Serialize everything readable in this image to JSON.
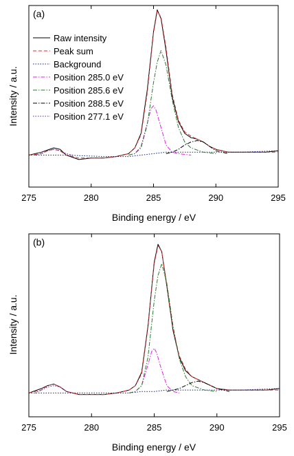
{
  "chart_data": [
    {
      "type": "line",
      "panel_label": "(a)",
      "xlabel": "Binding energy / eV",
      "ylabel": "Intensity / a.u.",
      "xlim": [
        275,
        295
      ],
      "ylim": [
        -0.22,
        1.03
      ],
      "x_ticks": [
        "275",
        "280",
        "285",
        "290",
        "295"
      ],
      "legend_placement": "top-left",
      "legend": [
        "Raw intensity",
        "Peak sum",
        "Background",
        "Position 285.0 eV",
        "Position 285.6 eV",
        "Position 288.5 eV",
        "Position 277.1 eV"
      ],
      "series": [
        {
          "name": "Raw intensity",
          "color": "#000000",
          "dash": "solid",
          "x": [
            275,
            276,
            276.5,
            277,
            277.5,
            278,
            279,
            280,
            281,
            282,
            283,
            283.5,
            284,
            284.5,
            285,
            285.3,
            285.6,
            286,
            286.5,
            287,
            287.5,
            288,
            288.5,
            289,
            289.5,
            290,
            291,
            292,
            293,
            294,
            295
          ],
          "y": [
            0.0,
            0.02,
            0.035,
            0.05,
            0.04,
            0.0,
            -0.03,
            -0.02,
            -0.02,
            -0.01,
            0.01,
            0.05,
            0.15,
            0.45,
            0.85,
            1.0,
            0.94,
            0.72,
            0.4,
            0.23,
            0.15,
            0.12,
            0.11,
            0.09,
            0.06,
            0.04,
            0.02,
            0.02,
            0.02,
            0.02,
            0.03
          ]
        },
        {
          "name": "Peak sum",
          "color": "#d32f2f",
          "dash": "dashed",
          "x": [
            275,
            276,
            276.5,
            277,
            277.5,
            278,
            279,
            280,
            281,
            282,
            283,
            283.5,
            284,
            284.5,
            285,
            285.3,
            285.6,
            286,
            286.5,
            287,
            287.5,
            288,
            288.5,
            289,
            289.5,
            290,
            291,
            292,
            293,
            294,
            295
          ],
          "y": [
            0.0,
            0.01,
            0.03,
            0.04,
            0.03,
            0.0,
            -0.02,
            -0.02,
            -0.02,
            -0.01,
            0.01,
            0.05,
            0.14,
            0.43,
            0.84,
            0.99,
            0.95,
            0.74,
            0.42,
            0.24,
            0.16,
            0.13,
            0.11,
            0.09,
            0.06,
            0.04,
            0.02,
            0.02,
            0.02,
            0.02,
            0.02
          ]
        },
        {
          "name": "Background",
          "color": "#0b1a8f",
          "dash": "dotted",
          "x": [
            275,
            278,
            281,
            283,
            284,
            285,
            286,
            287,
            288,
            290,
            292,
            295
          ],
          "y": [
            0.0,
            0.0,
            -0.01,
            -0.01,
            0.0,
            0.01,
            0.02,
            0.02,
            0.02,
            0.02,
            0.02,
            0.03
          ]
        },
        {
          "name": "Position 285.0 eV",
          "color": "#e020e0",
          "dash": "dashdot",
          "x": [
            283,
            283.5,
            284,
            284.5,
            284.8,
            285,
            285.2,
            285.5,
            286,
            286.5,
            287,
            288
          ],
          "y": [
            0.0,
            0.01,
            0.06,
            0.22,
            0.32,
            0.34,
            0.31,
            0.22,
            0.07,
            0.02,
            0.01,
            0.0
          ]
        },
        {
          "name": "Position 285.6 eV",
          "color": "#2a7a2a",
          "dash": "dashdot",
          "x": [
            283,
            283.5,
            284,
            284.5,
            285,
            285.3,
            285.6,
            286,
            286.5,
            287,
            287.5,
            288,
            289,
            290
          ],
          "y": [
            0.0,
            0.01,
            0.05,
            0.21,
            0.5,
            0.64,
            0.72,
            0.62,
            0.38,
            0.19,
            0.09,
            0.05,
            0.02,
            0.01
          ]
        },
        {
          "name": "Position 288.5 eV",
          "color": "#000000",
          "dash": "dashdot",
          "x": [
            286,
            286.5,
            287,
            287.5,
            288,
            288.5,
            289,
            289.5,
            290,
            290.5,
            291
          ],
          "y": [
            0.01,
            0.02,
            0.04,
            0.07,
            0.09,
            0.1,
            0.09,
            0.06,
            0.03,
            0.02,
            0.01
          ]
        },
        {
          "name": "Position 277.1 eV",
          "color": "#6a1b9a",
          "dash": "dotted",
          "x": [
            275.5,
            276,
            276.5,
            277,
            277.5,
            278,
            278.5
          ],
          "y": [
            0.0,
            0.01,
            0.03,
            0.04,
            0.03,
            0.01,
            0.0
          ]
        }
      ]
    },
    {
      "type": "line",
      "panel_label": "(b)",
      "xlabel": "Binding energy / eV",
      "ylabel": "Intensity / a.u.",
      "xlim": [
        275,
        295
      ],
      "ylim": [
        -0.16,
        1.07
      ],
      "x_ticks": [
        "275",
        "280",
        "285",
        "290",
        "295"
      ],
      "series": [
        {
          "name": "Raw intensity",
          "color": "#000000",
          "dash": "solid",
          "x": [
            275,
            276,
            276.5,
            277,
            277.5,
            278,
            279,
            280,
            281,
            282,
            283,
            283.5,
            284,
            284.5,
            285,
            285.3,
            285.6,
            286,
            286.5,
            287,
            287.5,
            288,
            288.5,
            289,
            289.5,
            290,
            291,
            292,
            293,
            294,
            295
          ],
          "y": [
            0.0,
            0.03,
            0.05,
            0.06,
            0.04,
            0.01,
            -0.01,
            -0.01,
            -0.01,
            0.0,
            0.02,
            0.05,
            0.14,
            0.45,
            0.88,
            1.0,
            0.95,
            0.72,
            0.42,
            0.24,
            0.15,
            0.11,
            0.09,
            0.07,
            0.05,
            0.03,
            0.02,
            0.02,
            0.02,
            0.02,
            0.03
          ]
        },
        {
          "name": "Peak sum",
          "color": "#d32f2f",
          "dash": "dashed",
          "x": [
            275,
            276,
            276.5,
            277,
            277.5,
            278,
            279,
            280,
            281,
            282,
            283,
            283.5,
            284,
            284.5,
            285,
            285.3,
            285.6,
            286,
            286.5,
            287,
            287.5,
            288,
            288.5,
            289,
            289.5,
            290,
            291,
            292,
            293,
            294,
            295
          ],
          "y": [
            0.0,
            0.02,
            0.05,
            0.06,
            0.04,
            0.01,
            -0.01,
            -0.01,
            -0.01,
            0.0,
            0.02,
            0.05,
            0.13,
            0.44,
            0.87,
            0.99,
            0.95,
            0.73,
            0.43,
            0.25,
            0.16,
            0.11,
            0.09,
            0.07,
            0.05,
            0.03,
            0.02,
            0.02,
            0.02,
            0.02,
            0.02
          ]
        },
        {
          "name": "Background",
          "color": "#0b1a8f",
          "dash": "dotted",
          "x": [
            275,
            278,
            281,
            283,
            284,
            285,
            286,
            287,
            288,
            290,
            292,
            295
          ],
          "y": [
            0.0,
            0.0,
            0.0,
            0.0,
            0.01,
            0.01,
            0.02,
            0.02,
            0.02,
            0.02,
            0.02,
            0.03
          ]
        },
        {
          "name": "Position 285.0 eV",
          "color": "#e020e0",
          "dash": "dashdot",
          "x": [
            283,
            283.5,
            284,
            284.5,
            284.8,
            285,
            285.2,
            285.5,
            286,
            286.5,
            287
          ],
          "y": [
            0.0,
            0.01,
            0.05,
            0.19,
            0.28,
            0.3,
            0.27,
            0.18,
            0.05,
            0.01,
            0.0
          ]
        },
        {
          "name": "Position 285.6 eV",
          "color": "#2a7a2a",
          "dash": "dashdot",
          "x": [
            283,
            283.5,
            284,
            284.5,
            285,
            285.3,
            285.6,
            286,
            286.5,
            287,
            287.5,
            288,
            289,
            290
          ],
          "y": [
            0.0,
            0.01,
            0.05,
            0.24,
            0.62,
            0.79,
            0.87,
            0.74,
            0.45,
            0.23,
            0.11,
            0.05,
            0.02,
            0.01
          ]
        },
        {
          "name": "Position 288.5 eV",
          "color": "#000000",
          "dash": "dashdot",
          "x": [
            286,
            286.5,
            287,
            287.5,
            288,
            288.5,
            289,
            289.5,
            290,
            290.5,
            291
          ],
          "y": [
            0.01,
            0.02,
            0.03,
            0.05,
            0.07,
            0.08,
            0.07,
            0.05,
            0.03,
            0.02,
            0.01
          ]
        },
        {
          "name": "Position 277.1 eV",
          "color": "#6a1b9a",
          "dash": "dotted",
          "x": [
            275.5,
            276,
            276.5,
            277,
            277.5,
            278,
            278.5
          ],
          "y": [
            0.0,
            0.02,
            0.04,
            0.05,
            0.04,
            0.01,
            0.0
          ]
        }
      ]
    }
  ]
}
